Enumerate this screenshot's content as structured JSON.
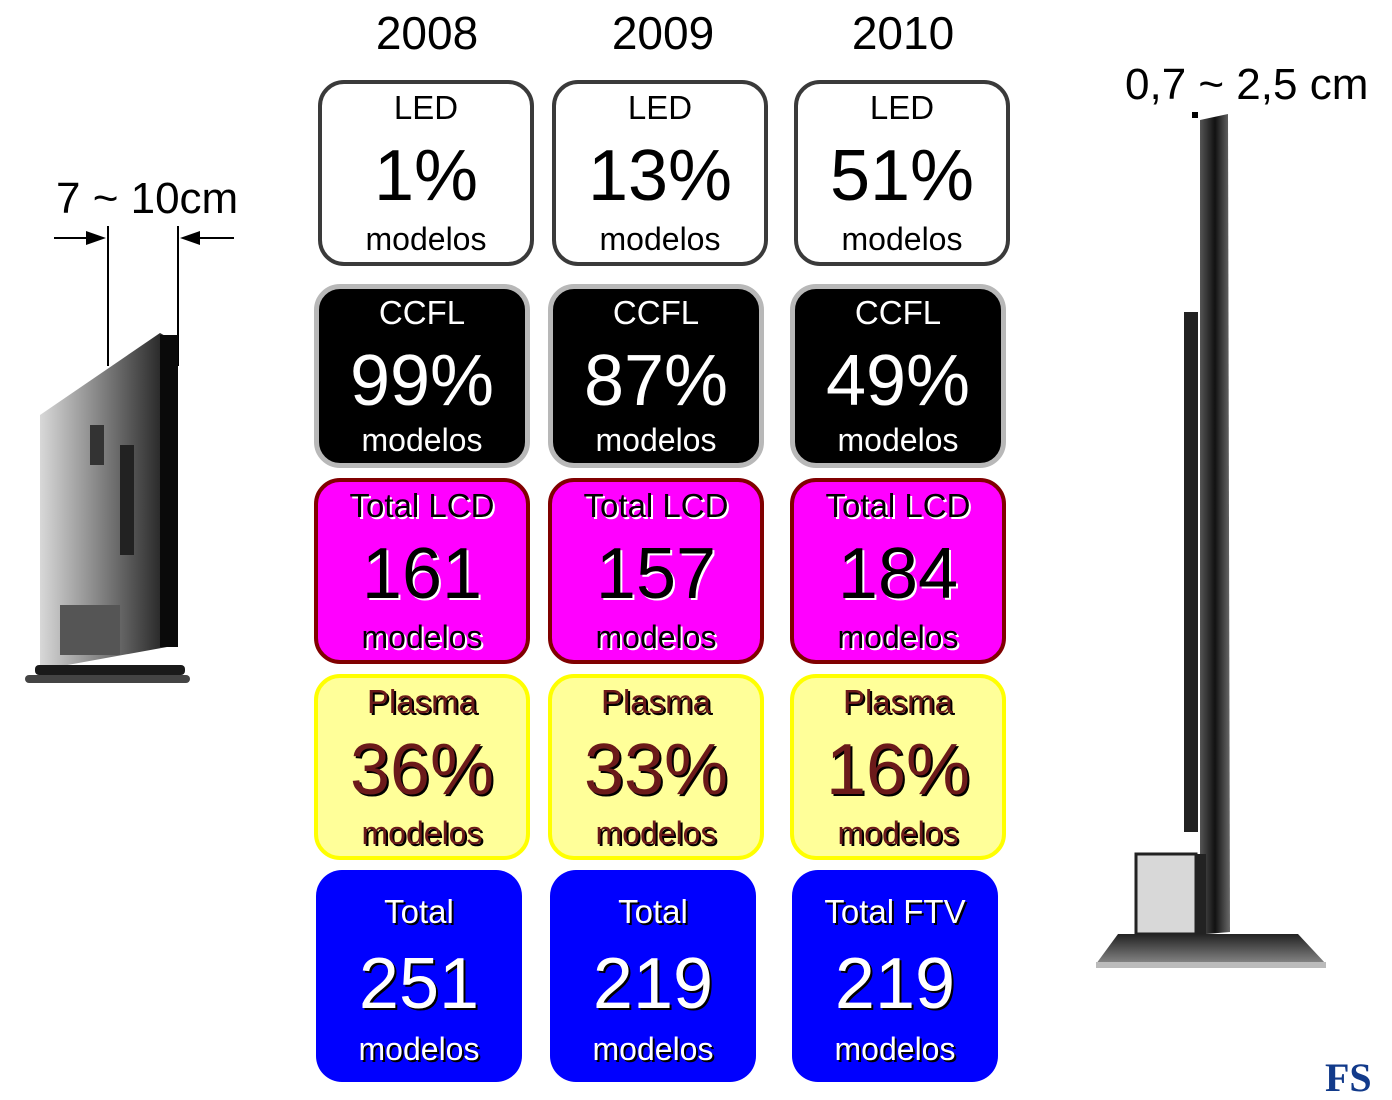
{
  "left_measure": "7 ~ 10cm",
  "right_measure": "0,7 ~ 2,5 cm",
  "logo_text": "FS",
  "years": [
    "2008",
    "2009",
    "2010"
  ],
  "rows": {
    "led": {
      "labels": [
        "LED",
        "LED",
        "LED"
      ],
      "values": [
        "1%",
        "13%",
        "51%"
      ],
      "unit": "modelos"
    },
    "ccfl": {
      "labels": [
        "CCFL",
        "CCFL",
        "CCFL"
      ],
      "values": [
        "99%",
        "87%",
        "49%"
      ],
      "unit": "modelos"
    },
    "lcd": {
      "labels": [
        "Total LCD",
        "Total LCD",
        "Total LCD"
      ],
      "values": [
        "161",
        "157",
        "184"
      ],
      "unit": "modelos"
    },
    "plasma": {
      "labels": [
        "Plasma",
        "Plasma",
        "Plasma"
      ],
      "values": [
        "36%",
        "33%",
        "16%"
      ],
      "unit": "modelos"
    },
    "total": {
      "labels": [
        "Total",
        "Total",
        "Total FTV"
      ],
      "values": [
        "251",
        "219",
        "219"
      ],
      "unit": "modelos"
    }
  },
  "colors": {
    "led_bg": "#ffffff",
    "ccfl_bg": "#000000",
    "lcd_bg": "#ff00ff",
    "plasma_bg": "#ffff99",
    "total_bg": "#0000ff"
  },
  "icons": [
    "tv-side-thick-icon",
    "tv-side-thin-icon",
    "dimension-arrow-icon"
  ]
}
